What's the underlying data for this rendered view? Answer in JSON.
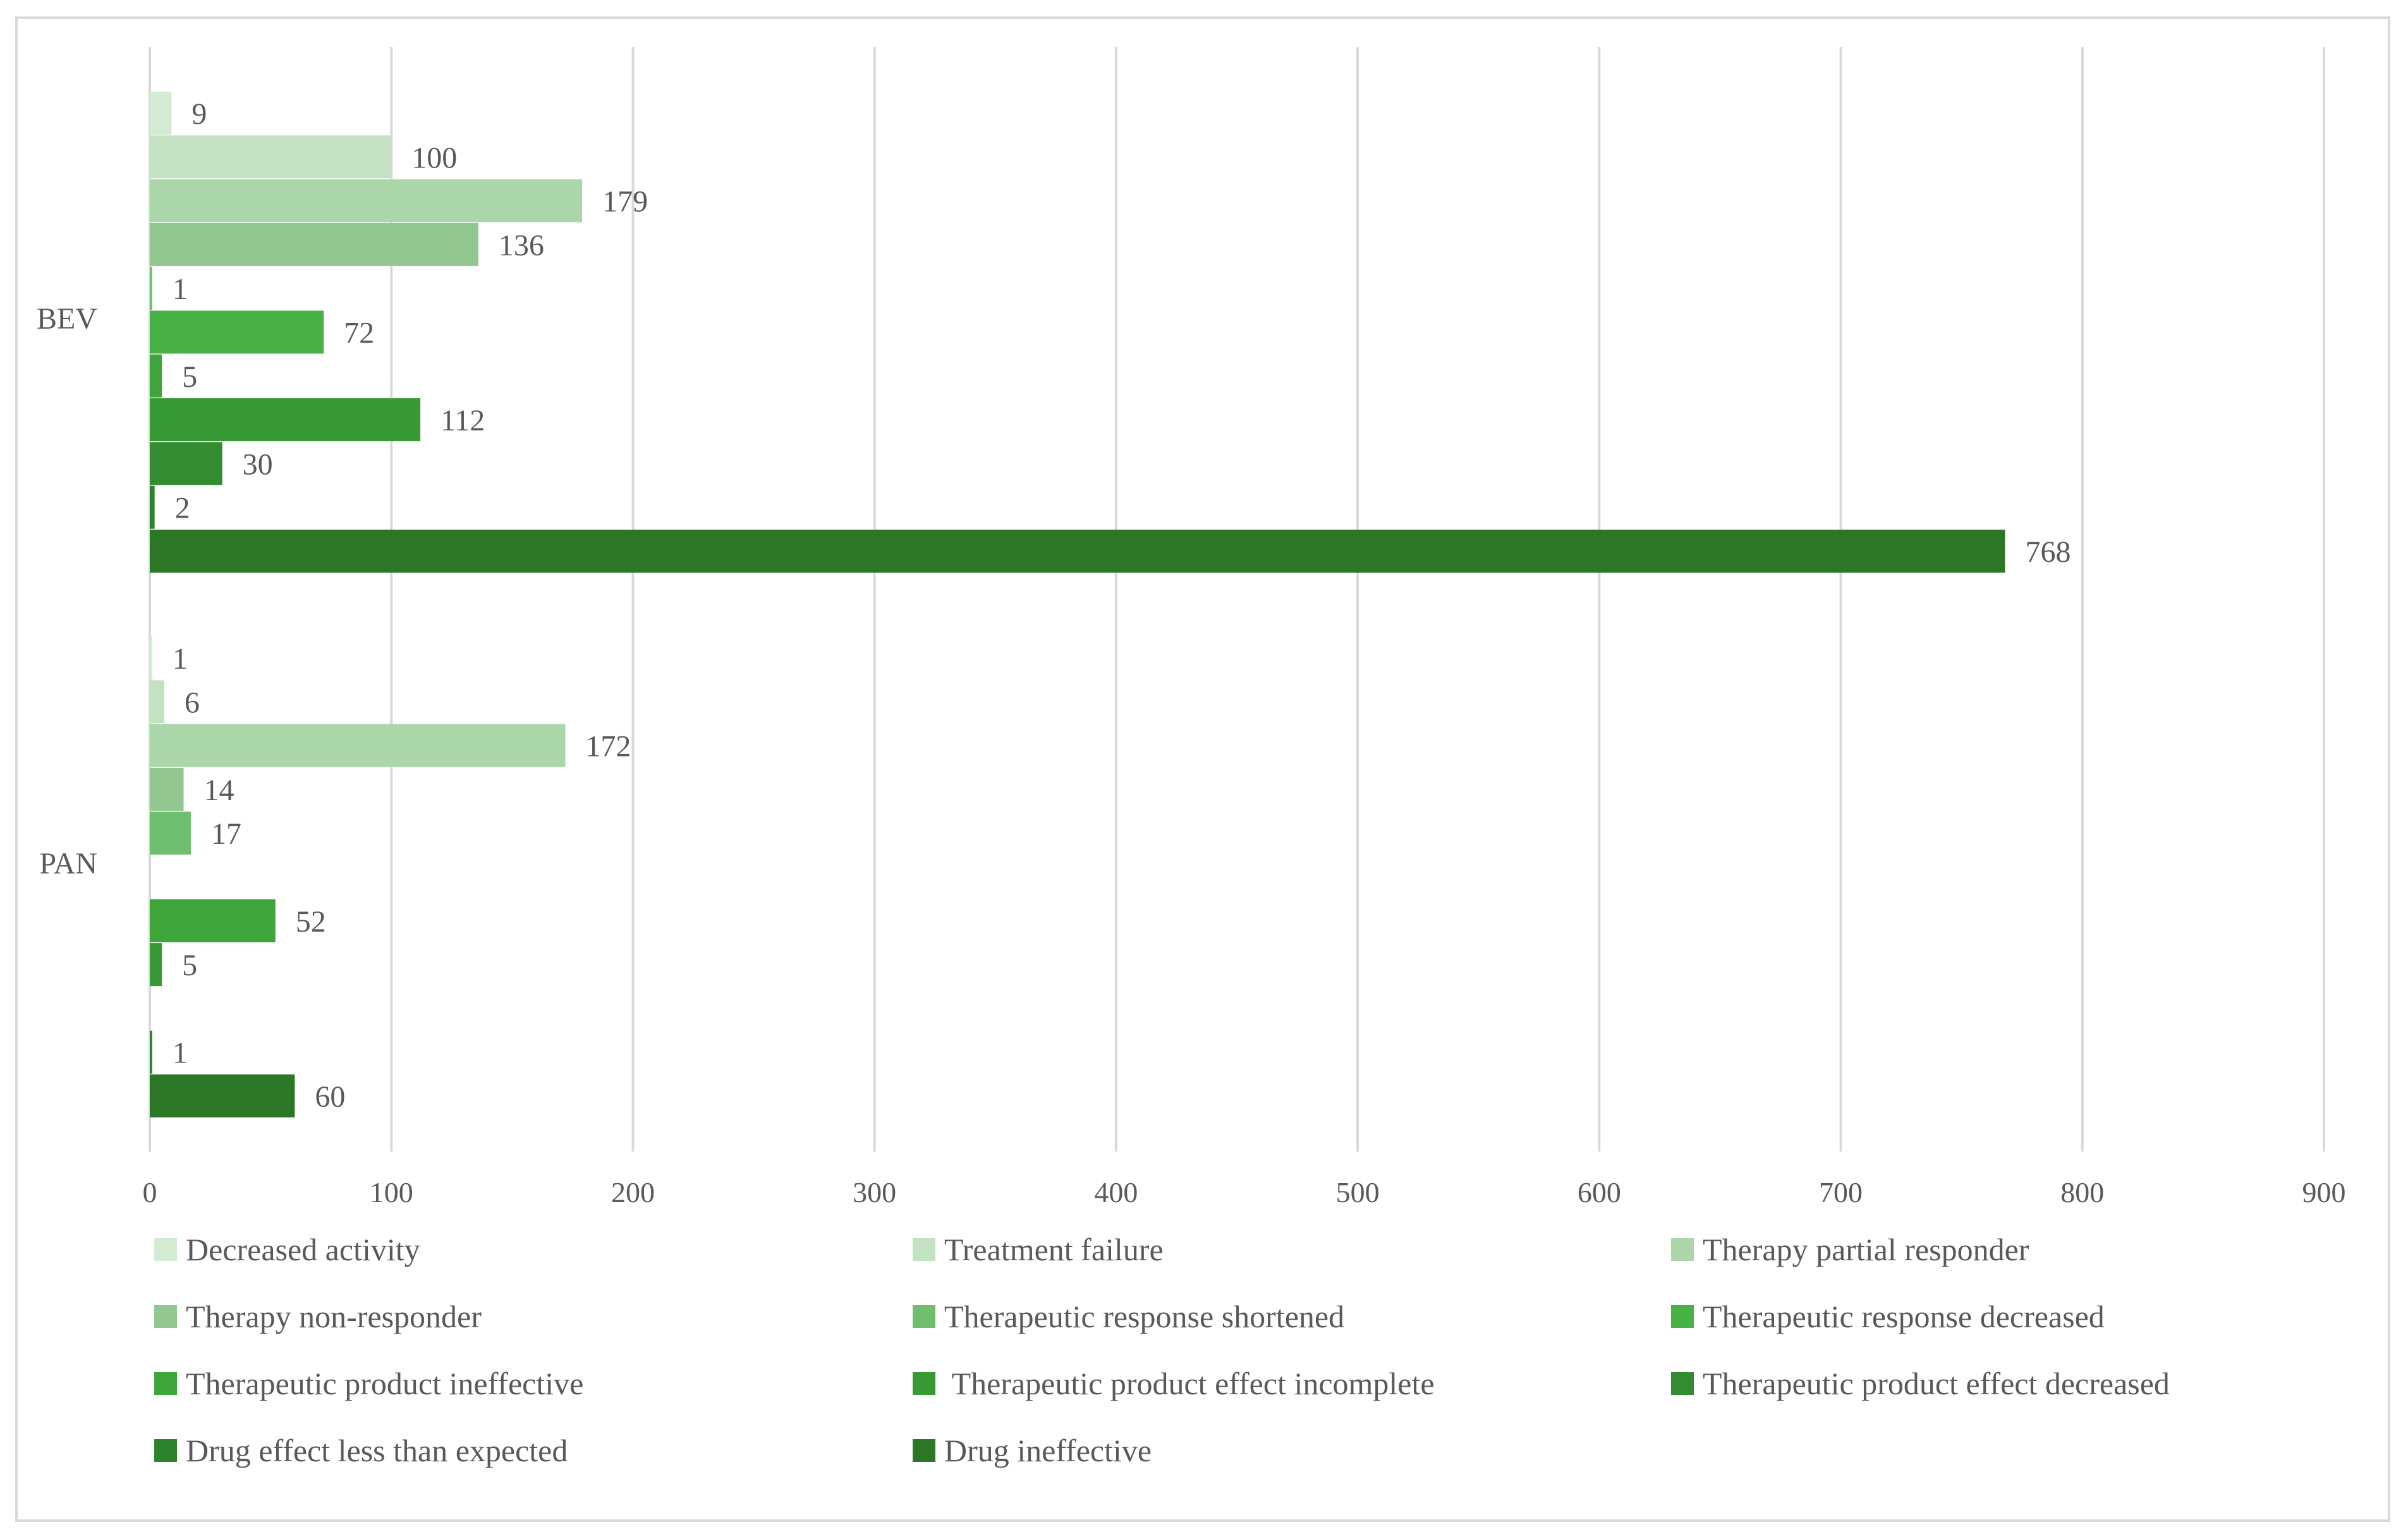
{
  "chart_data": {
    "type": "bar",
    "orientation": "horizontal",
    "title": "",
    "xlabel": "",
    "ylabel": "",
    "xlim": [
      0,
      900
    ],
    "xticks": [
      0,
      100,
      200,
      300,
      400,
      500,
      600,
      700,
      800,
      900
    ],
    "grid": true,
    "legend_position": "bottom",
    "categories": [
      "BEV",
      "PAN"
    ],
    "series": [
      {
        "name": "Decreased activity",
        "color": "#d3ead3",
        "values": [
          9,
          1
        ]
      },
      {
        "name": "Treatment failure",
        "color": "#c3e2c2",
        "values": [
          100,
          6
        ]
      },
      {
        "name": "Therapy partial responder",
        "color": "#abd6aa",
        "values": [
          179,
          172
        ]
      },
      {
        "name": "Therapy non-responder",
        "color": "#92c890",
        "values": [
          136,
          14
        ]
      },
      {
        "name": "Therapeutic response shortened",
        "color": "#6fbe6d",
        "values": [
          1,
          17
        ]
      },
      {
        "name": "Therapeutic response decreased",
        "color": "#49b247",
        "values": [
          72,
          null
        ]
      },
      {
        "name": "Therapeutic product ineffective",
        "color": "#3ea53b",
        "values": [
          5,
          52
        ]
      },
      {
        "name": " Therapeutic product effect incomplete",
        "color": "#379a34",
        "values": [
          112,
          5
        ]
      },
      {
        "name": "Therapeutic product effect decreased",
        "color": "#338d30",
        "values": [
          30,
          null
        ]
      },
      {
        "name": "Drug effect less than expected",
        "color": "#2e822b",
        "values": [
          2,
          1
        ]
      },
      {
        "name": "Drug ineffective",
        "color": "#2c7726",
        "values": [
          768,
          60
        ]
      }
    ]
  }
}
